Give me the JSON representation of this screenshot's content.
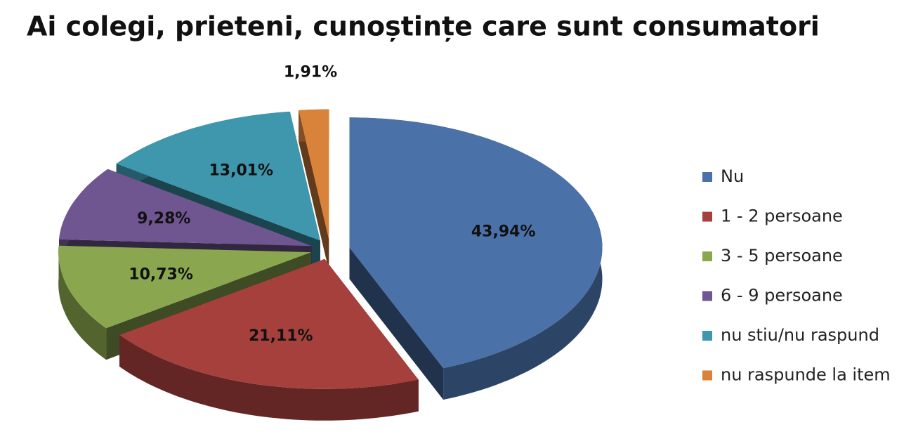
{
  "chart_data": {
    "type": "pie",
    "title": "Ai colegi, prieteni, cunoștințe care sunt consumatori",
    "categories": [
      "Nu",
      "1 - 2 persoane",
      "3 - 5 persoane",
      "6 - 9 persoane",
      "nu stiu/nu raspund",
      "nu raspunde la item"
    ],
    "values": [
      43.94,
      21.11,
      10.73,
      9.28,
      13.01,
      1.91
    ],
    "value_labels": [
      "43,94%",
      "21,11%",
      "10,73%",
      "9,28%",
      "13,01%",
      "1,91%"
    ],
    "colors": [
      "#4a71a8",
      "#a6403d",
      "#8aa74f",
      "#6f5690",
      "#3e97ad",
      "#d9823a"
    ],
    "legend": "right"
  }
}
